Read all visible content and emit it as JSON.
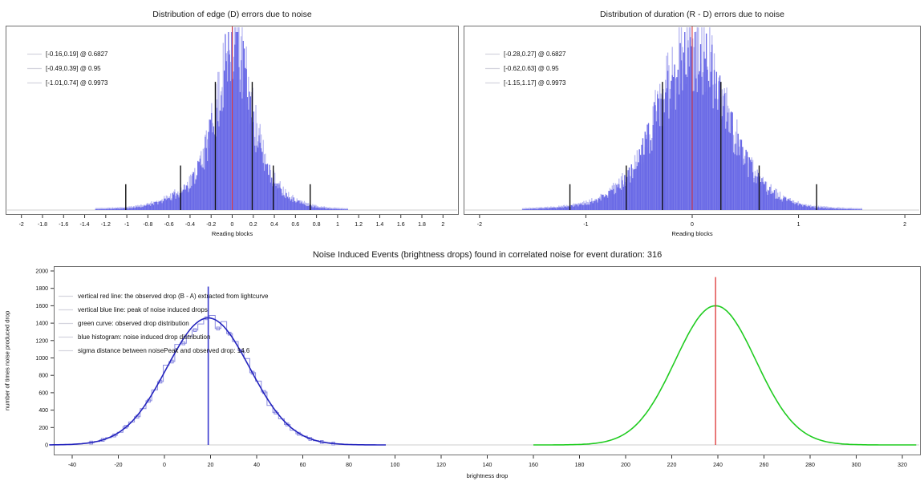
{
  "figure": {
    "background": "#ffffff",
    "colors": {
      "hist_fill": "#6868e6",
      "hist_fuzz": "#a6a6ef",
      "red_line": "#dd3333",
      "black_line": "#111111",
      "blue_curve": "#2424bd",
      "blue_step": "#8b8be0",
      "blue_vline": "#3939cf",
      "green_curve": "#21cc21",
      "legend_swatch": "#d4d4de",
      "spine": "#6e6e6e",
      "baseline": "#cfcfcf"
    }
  },
  "chart_data": [
    {
      "id": "edge-errors",
      "type": "histogram",
      "title": "Distribution of edge (D) errors due to noise",
      "xlabel": "Reading blocks",
      "xlim": [
        -2.15,
        2.15
      ],
      "xticks": [
        "-2",
        "-1.8",
        "-1.6",
        "-1.4",
        "-1.2",
        "-1",
        "-0.8",
        "-0.6",
        "-0.4",
        "-0.2",
        "0",
        "0.2",
        "0.4",
        "0.6",
        "0.8",
        "1",
        "1.2",
        "1.4",
        "1.6",
        "1.8",
        "2"
      ],
      "legend": [
        "[-0.16,0.19] @ 0.6827",
        "[-0.49,0.39] @ 0.95",
        "[-1.01,0.74] @ 0.9973"
      ],
      "red_vline_x": 0,
      "interval_lines": [
        {
          "x": -0.16,
          "h": 0.72
        },
        {
          "x": 0.19,
          "h": 0.72
        },
        {
          "x": -0.49,
          "h": 0.25
        },
        {
          "x": 0.39,
          "h": 0.25
        },
        {
          "x": -1.01,
          "h": 0.145
        },
        {
          "x": 0.74,
          "h": 0.145
        }
      ],
      "hist_envelope": [
        [
          -1.3,
          0.004
        ],
        [
          -1.15,
          0.006
        ],
        [
          -1.0,
          0.01
        ],
        [
          -0.9,
          0.016
        ],
        [
          -0.8,
          0.026
        ],
        [
          -0.7,
          0.042
        ],
        [
          -0.6,
          0.065
        ],
        [
          -0.5,
          0.095
        ],
        [
          -0.45,
          0.115
        ],
        [
          -0.4,
          0.15
        ],
        [
          -0.35,
          0.195
        ],
        [
          -0.3,
          0.26
        ],
        [
          -0.25,
          0.335
        ],
        [
          -0.2,
          0.43
        ],
        [
          -0.15,
          0.545
        ],
        [
          -0.1,
          0.68
        ],
        [
          -0.05,
          0.82
        ],
        [
          -0.02,
          0.9
        ],
        [
          0.0,
          0.945
        ],
        [
          0.03,
          0.97
        ],
        [
          0.06,
          0.9
        ],
        [
          0.1,
          0.79
        ],
        [
          0.15,
          0.64
        ],
        [
          0.2,
          0.5
        ],
        [
          0.25,
          0.385
        ],
        [
          0.3,
          0.29
        ],
        [
          0.35,
          0.215
        ],
        [
          0.4,
          0.16
        ],
        [
          0.45,
          0.12
        ],
        [
          0.5,
          0.09
        ],
        [
          0.6,
          0.052
        ],
        [
          0.7,
          0.03
        ],
        [
          0.8,
          0.016
        ],
        [
          0.9,
          0.009
        ],
        [
          1.0,
          0.005
        ],
        [
          1.1,
          0.003
        ]
      ],
      "n_bars": 240,
      "noise_seed": 11
    },
    {
      "id": "duration-errors",
      "type": "histogram",
      "title": "Distribution of duration (R - D) errors due to noise",
      "xlabel": "Reading blocks",
      "xlim": [
        -2.15,
        2.15
      ],
      "xticks": [
        "-2",
        "-1",
        "0",
        "1",
        "2"
      ],
      "legend": [
        "[-0.28,0.27] @ 0.6827",
        "[-0.62,0.63] @ 0.95",
        "[-1.15,1.17] @ 0.9973"
      ],
      "red_vline_x": 0,
      "interval_lines": [
        {
          "x": -0.28,
          "h": 0.72
        },
        {
          "x": 0.27,
          "h": 0.72
        },
        {
          "x": -0.62,
          "h": 0.25
        },
        {
          "x": 0.63,
          "h": 0.25
        },
        {
          "x": -1.15,
          "h": 0.145
        },
        {
          "x": 1.17,
          "h": 0.145
        }
      ],
      "hist_envelope": [
        [
          -1.6,
          0.004
        ],
        [
          -1.4,
          0.008
        ],
        [
          -1.25,
          0.014
        ],
        [
          -1.1,
          0.024
        ],
        [
          -1.0,
          0.035
        ],
        [
          -0.9,
          0.055
        ],
        [
          -0.8,
          0.085
        ],
        [
          -0.7,
          0.125
        ],
        [
          -0.6,
          0.185
        ],
        [
          -0.5,
          0.28
        ],
        [
          -0.45,
          0.34
        ],
        [
          -0.4,
          0.42
        ],
        [
          -0.35,
          0.5
        ],
        [
          -0.3,
          0.58
        ],
        [
          -0.25,
          0.655
        ],
        [
          -0.2,
          0.72
        ],
        [
          -0.15,
          0.78
        ],
        [
          -0.1,
          0.835
        ],
        [
          -0.05,
          0.875
        ],
        [
          0.0,
          0.9
        ],
        [
          0.05,
          0.875
        ],
        [
          0.1,
          0.835
        ],
        [
          0.15,
          0.78
        ],
        [
          0.2,
          0.72
        ],
        [
          0.25,
          0.65
        ],
        [
          0.3,
          0.575
        ],
        [
          0.35,
          0.495
        ],
        [
          0.4,
          0.415
        ],
        [
          0.45,
          0.34
        ],
        [
          0.5,
          0.275
        ],
        [
          0.6,
          0.18
        ],
        [
          0.7,
          0.12
        ],
        [
          0.8,
          0.08
        ],
        [
          0.9,
          0.05
        ],
        [
          1.0,
          0.032
        ],
        [
          1.1,
          0.02
        ],
        [
          1.2,
          0.013
        ],
        [
          1.4,
          0.006
        ],
        [
          1.6,
          0.003
        ]
      ],
      "n_bars": 300,
      "noise_seed": 23
    },
    {
      "id": "noise-events",
      "type": "histogram_curves",
      "title": "Noise Induced Events (brightness drops) found in correlated noise for event duration: 316",
      "xlabel": "brightness drop",
      "ylabel": "number of times noise produced drop",
      "xlim": [
        -48,
        328
      ],
      "ylim": [
        0,
        2000
      ],
      "xticks": [
        -40,
        -20,
        0,
        20,
        40,
        60,
        80,
        100,
        120,
        140,
        160,
        180,
        200,
        220,
        240,
        260,
        280,
        300,
        320
      ],
      "yticks": [
        0,
        200,
        400,
        600,
        800,
        1000,
        1200,
        1400,
        1600,
        1800,
        2000
      ],
      "legend": [
        "vertical red line: the observed drop (B - A) extracted from lightcurve",
        "vertical blue line: peak of noise induced drops",
        "green curve: observed drop distribution",
        "blue histogram: noise induced drop distribution",
        "sigma distance between noisePeak and observed drop: 14.6"
      ],
      "sigma_distance": 14.6,
      "red_vline": {
        "x": 239,
        "ymax": 1930
      },
      "blue_vline": {
        "x": 19,
        "ymax": 1820
      },
      "blue_histogram": {
        "mean": 19,
        "sigma": 18,
        "amplitude": 1450,
        "range": [
          -48,
          92
        ],
        "bin_width": 2.5
      },
      "blue_fit_curve": {
        "mean": 19,
        "sigma": 18,
        "amplitude": 1460,
        "range": [
          -50,
          96
        ]
      },
      "green_curve": {
        "mean": 239,
        "sigma": 17.5,
        "amplitude": 1600,
        "range": [
          160,
          326
        ]
      },
      "noise_seed": 7
    }
  ]
}
